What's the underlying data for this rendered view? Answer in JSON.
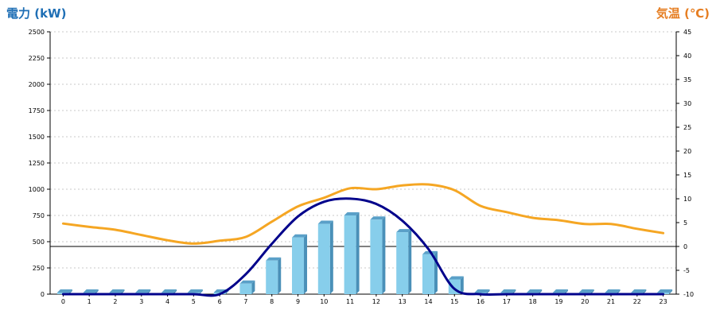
{
  "chart_data": {
    "type": "bar",
    "title_left": "電力 (kW)",
    "title_right": "気温 (℃)",
    "categories": [
      "0",
      "1",
      "2",
      "3",
      "4",
      "5",
      "6",
      "7",
      "8",
      "9",
      "10",
      "11",
      "12",
      "13",
      "14",
      "15",
      "16",
      "17",
      "18",
      "19",
      "20",
      "21",
      "22",
      "23"
    ],
    "y_left": {
      "min": 0,
      "max": 2500,
      "ticks": [
        "0",
        "250",
        "500",
        "750",
        "1000",
        "1250",
        "1500",
        "1750",
        "2000",
        "2250",
        "2500"
      ]
    },
    "y_right": {
      "min": -10,
      "max": 45,
      "ticks": [
        "-10",
        "-5",
        "0",
        "5",
        "10",
        "15",
        "20",
        "25",
        "30",
        "35",
        "40",
        "45"
      ]
    },
    "grid": true,
    "series": [
      {
        "kind": "bar",
        "axis": "left",
        "color": "#87ceeb",
        "values": [
          0,
          0,
          0,
          0,
          0,
          0,
          0,
          100,
          320,
          540,
          670,
          750,
          710,
          590,
          380,
          140,
          0,
          0,
          0,
          0,
          0,
          0,
          0,
          0
        ]
      },
      {
        "kind": "line",
        "axis": "left",
        "color": "#00008b",
        "values": [
          0,
          0,
          0,
          0,
          0,
          0,
          0,
          190,
          480,
          740,
          880,
          910,
          860,
          700,
          430,
          50,
          0,
          0,
          0,
          0,
          0,
          0,
          0,
          0
        ]
      },
      {
        "kind": "line",
        "axis": "right",
        "color": "#f5a623",
        "values": [
          4.8,
          4.1,
          3.5,
          2.4,
          1.3,
          0.6,
          1.2,
          2.0,
          5.2,
          8.4,
          10.2,
          12.2,
          12.0,
          12.8,
          13.0,
          11.8,
          8.5,
          7.2,
          6.0,
          5.5,
          4.7,
          4.7,
          3.7,
          2.8
        ]
      }
    ]
  }
}
